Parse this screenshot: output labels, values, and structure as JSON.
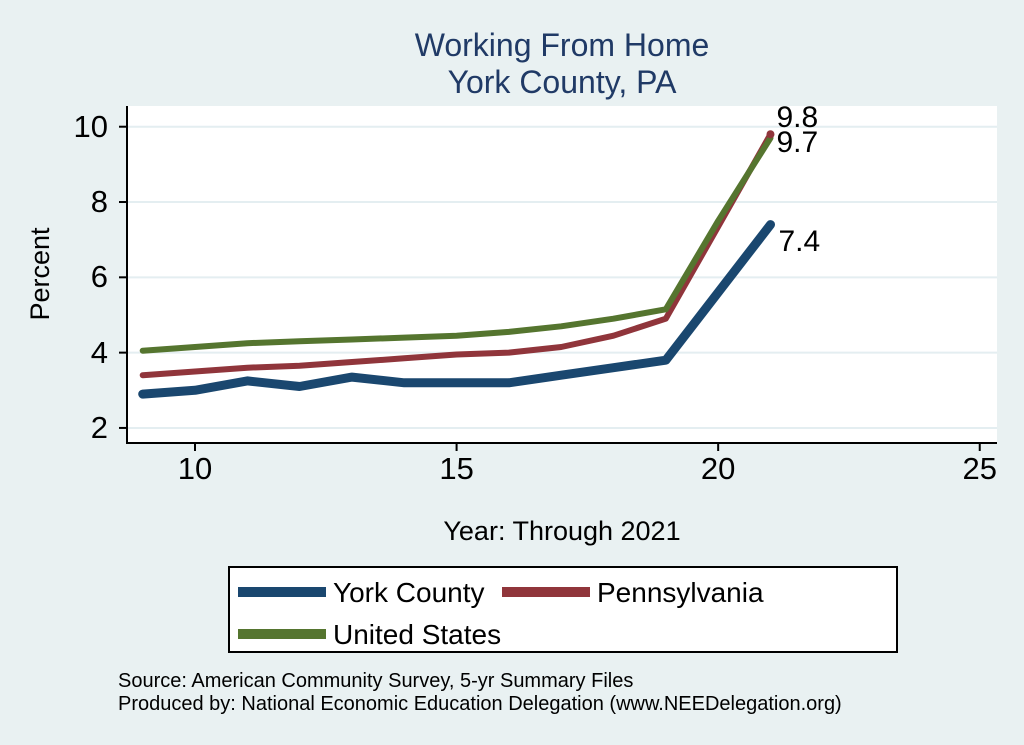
{
  "title": {
    "line1": "Working From Home",
    "line2": "York County, PA"
  },
  "axes": {
    "y_label": "Percent",
    "x_label": "Year: Through 2021"
  },
  "chart_data": {
    "type": "line",
    "title": "Working From Home — York County, PA",
    "xlabel": "Year: Through 2021",
    "ylabel": "Percent",
    "x": [
      9,
      10,
      11,
      12,
      13,
      14,
      15,
      16,
      17,
      18,
      19,
      20,
      21
    ],
    "series": [
      {
        "name": "York County",
        "color": "#1a476f",
        "width": 9,
        "end_label": "7.4",
        "values": [
          2.9,
          3.0,
          3.25,
          3.1,
          3.35,
          3.2,
          3.2,
          3.2,
          3.4,
          3.6,
          3.8,
          5.6,
          7.4
        ]
      },
      {
        "name": "Pennsylvania",
        "color": "#90353b",
        "width": 6,
        "end_label": "9.8",
        "end_dot": true,
        "values": [
          3.4,
          3.5,
          3.6,
          3.65,
          3.75,
          3.85,
          3.95,
          4.0,
          4.15,
          4.45,
          4.9,
          7.35,
          9.8
        ]
      },
      {
        "name": "United States",
        "color": "#55752f",
        "width": 6,
        "end_label": "9.7",
        "values": [
          4.05,
          4.15,
          4.25,
          4.3,
          4.35,
          4.4,
          4.45,
          4.55,
          4.7,
          4.9,
          5.15,
          7.5,
          9.7
        ]
      }
    ],
    "x_ticks": [
      "10",
      "15",
      "20",
      "25"
    ],
    "y_ticks": [
      "2",
      "4",
      "6",
      "8",
      "10"
    ],
    "x_range": [
      8.7,
      25.33
    ],
    "y_range": [
      1.6,
      10.55
    ],
    "grid": true,
    "legend_position": "bottom"
  },
  "legend": {
    "items": [
      {
        "label": "York County",
        "color": "#1a476f"
      },
      {
        "label": "Pennsylvania",
        "color": "#90353b"
      },
      {
        "label": "United States",
        "color": "#55752f"
      }
    ]
  },
  "source": {
    "line1": "Source: American Community Survey, 5-yr Summary Files",
    "line2": "Produced by: National Economic Education Delegation (www.NEEDelegation.org)"
  },
  "colors": {
    "background": "#e9f1f2",
    "plot_background": "#ffffff",
    "gridline": "#e4eef1",
    "title_text": "#203a66",
    "axis_text": "#000000"
  }
}
